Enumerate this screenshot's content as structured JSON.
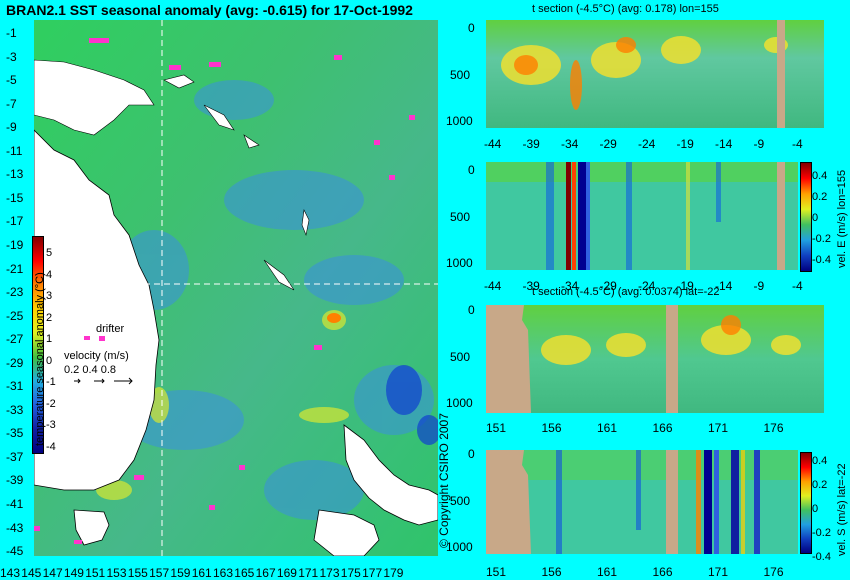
{
  "title": "BRAN2.1 SST seasonal anomaly (avg: -0.615) for 17-Oct-1992",
  "map": {
    "lat_ticks": [
      "-1",
      "-3",
      "-5",
      "-7",
      "-9",
      "-11",
      "-13",
      "-15",
      "-17",
      "-19",
      "-21",
      "-23",
      "-25",
      "-27",
      "-29",
      "-31",
      "-33",
      "-35",
      "-37",
      "-39",
      "-41",
      "-43",
      "-45"
    ],
    "lon_ticks": [
      "143",
      "145",
      "147",
      "149",
      "151",
      "153",
      "155",
      "157",
      "159",
      "161",
      "163",
      "165",
      "167",
      "169",
      "171",
      "173",
      "175",
      "177",
      "179"
    ],
    "colorbar_label": "temperature seasonal anomaly (°C)",
    "colorbar_ticks": [
      "5",
      "4",
      "3",
      "2",
      "1",
      "0",
      "-1",
      "-2",
      "-3",
      "-4"
    ],
    "drifter_label": "drifter",
    "velocity_label": "velocity (m/s)",
    "velocity_values": "0.2  0.4  0.8",
    "copyright": "© Copyright CSIRO 2007",
    "land_color": "#ffffff",
    "ocean_base_color": "#33cc66"
  },
  "panels": {
    "p1": {
      "title": "t section (-4.5°C) (avg: 0.178) lon=155",
      "y_ticks": [
        "0",
        "500",
        "1000"
      ],
      "x_ticks": [
        "-44",
        "-39",
        "-34",
        "-29",
        "-24",
        "-19",
        "-14",
        "-9",
        "-4"
      ]
    },
    "p2": {
      "title": "",
      "y_ticks": [
        "0",
        "500",
        "1000"
      ],
      "x_ticks": [
        "-44",
        "-39",
        "-34",
        "-29",
        "-24",
        "-19",
        "-14",
        "-9",
        "-4"
      ],
      "side_label": "vel. E (m/s) lon=155",
      "cb_ticks": [
        "0.4",
        "0.2",
        "0",
        "-0.2",
        "-0.4"
      ]
    },
    "p3": {
      "title": "t section (-4.5°C) (avg: 0.0374) lat=-22",
      "y_ticks": [
        "0",
        "500",
        "1000"
      ],
      "x_ticks": [
        "151",
        "156",
        "161",
        "166",
        "171",
        "176"
      ]
    },
    "p4": {
      "title": "",
      "y_ticks": [
        "0",
        "500",
        "1000"
      ],
      "x_ticks": [
        "151",
        "156",
        "161",
        "166",
        "171",
        "176"
      ],
      "side_label": "vel. S (m/s) lat=-22",
      "cb_ticks": [
        "0.4",
        "0.2",
        "0",
        "-0.2",
        "-0.4"
      ]
    }
  }
}
